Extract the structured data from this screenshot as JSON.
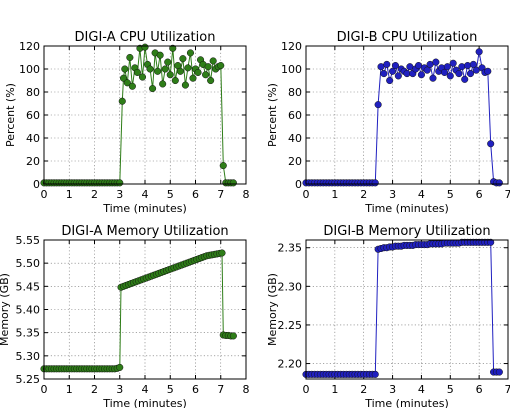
{
  "chart_data": [
    {
      "type": "line",
      "title": "DIGI-A CPU Utilization",
      "xlabel": "Time (minutes)",
      "ylabel": "Percent (%)",
      "xlim": [
        0,
        8
      ],
      "ylim": [
        0,
        120
      ],
      "xticks": [
        "0",
        "1",
        "2",
        "3",
        "4",
        "5",
        "6",
        "7",
        "8"
      ],
      "yticks": [
        "0",
        "20",
        "40",
        "60",
        "80",
        "100",
        "120"
      ],
      "grid": true,
      "series": [
        {
          "color": "#2e7d18",
          "x": [
            0.0,
            0.1,
            0.2,
            0.3,
            0.4,
            0.5,
            0.6,
            0.7,
            0.8,
            0.9,
            1.0,
            1.1,
            1.2,
            1.3,
            1.4,
            1.5,
            1.6,
            1.7,
            1.8,
            1.9,
            2.0,
            2.1,
            2.2,
            2.3,
            2.4,
            2.5,
            2.6,
            2.7,
            2.8,
            2.9,
            3.0,
            3.1,
            3.15,
            3.2,
            3.3,
            3.4,
            3.5,
            3.6,
            3.7,
            3.8,
            3.9,
            4.0,
            4.1,
            4.2,
            4.3,
            4.4,
            4.5,
            4.6,
            4.7,
            4.8,
            4.9,
            5.0,
            5.1,
            5.2,
            5.3,
            5.4,
            5.5,
            5.6,
            5.7,
            5.8,
            5.9,
            6.0,
            6.1,
            6.2,
            6.3,
            6.4,
            6.5,
            6.6,
            6.7,
            6.8,
            6.9,
            7.0,
            7.1,
            7.2,
            7.3,
            7.4,
            7.5
          ],
          "y": [
            1,
            1,
            1,
            1,
            1,
            1,
            1,
            1,
            1,
            1,
            1,
            1,
            1,
            1,
            1,
            1,
            1,
            1,
            1,
            1,
            1,
            1,
            1,
            1,
            1,
            1,
            1,
            1,
            1,
            1,
            1,
            72,
            92,
            100,
            88,
            110,
            85,
            101,
            97,
            118,
            93,
            119,
            104,
            100,
            83,
            114,
            98,
            112,
            87,
            100,
            106,
            95,
            118,
            90,
            103,
            98,
            109,
            86,
            101,
            114,
            92,
            100,
            97,
            108,
            104,
            95,
            102,
            90,
            107,
            100,
            102,
            103,
            16,
            1,
            1,
            1,
            1
          ]
        }
      ]
    },
    {
      "type": "line",
      "title": "DIGI-B CPU Utilization",
      "xlabel": "Time (minutes)",
      "ylabel": "Percent (%)",
      "xlim": [
        0,
        7
      ],
      "ylim": [
        0,
        120
      ],
      "xticks": [
        "0",
        "1",
        "2",
        "3",
        "4",
        "5",
        "6",
        "7"
      ],
      "yticks": [
        "0",
        "20",
        "40",
        "60",
        "80",
        "100",
        "120"
      ],
      "grid": true,
      "series": [
        {
          "color": "#2020c0",
          "x": [
            0.0,
            0.1,
            0.2,
            0.3,
            0.4,
            0.5,
            0.6,
            0.7,
            0.8,
            0.9,
            1.0,
            1.1,
            1.2,
            1.3,
            1.4,
            1.5,
            1.6,
            1.7,
            1.8,
            1.9,
            2.0,
            2.1,
            2.2,
            2.3,
            2.4,
            2.5,
            2.6,
            2.7,
            2.8,
            2.9,
            3.0,
            3.1,
            3.2,
            3.3,
            3.4,
            3.5,
            3.6,
            3.7,
            3.8,
            3.9,
            4.0,
            4.1,
            4.2,
            4.3,
            4.4,
            4.5,
            4.6,
            4.7,
            4.8,
            4.9,
            5.0,
            5.1,
            5.2,
            5.3,
            5.4,
            5.5,
            5.6,
            5.7,
            5.8,
            5.9,
            6.0,
            6.1,
            6.2,
            6.3,
            6.4,
            6.5,
            6.6,
            6.7
          ],
          "y": [
            1,
            1,
            1,
            1,
            1,
            1,
            1,
            1,
            1,
            1,
            1,
            1,
            1,
            1,
            1,
            1,
            1,
            1,
            1,
            1,
            1,
            1,
            1,
            1,
            1,
            69,
            102,
            96,
            104,
            90,
            98,
            103,
            94,
            100,
            98,
            96,
            102,
            96,
            100,
            103,
            95,
            101,
            99,
            104,
            92,
            106,
            98,
            101,
            97,
            102,
            94,
            105,
            99,
            96,
            102,
            91,
            103,
            96,
            104,
            99,
            115,
            101,
            97,
            98,
            35,
            2,
            1,
            1
          ]
        }
      ]
    },
    {
      "type": "line",
      "title": "DIGI-A Memory Utilization",
      "xlabel": "Time (minutes)",
      "ylabel": "Memory (GB)",
      "xlim": [
        0,
        8
      ],
      "ylim": [
        5.25,
        5.55
      ],
      "xticks": [
        "0",
        "1",
        "2",
        "3",
        "4",
        "5",
        "6",
        "7",
        "8"
      ],
      "yticks": [
        "5.25",
        "5.30",
        "5.35",
        "5.40",
        "5.45",
        "5.50",
        "5.55"
      ],
      "grid": true,
      "series": [
        {
          "color": "#2e7d18",
          "x": [
            0.0,
            0.1,
            0.2,
            0.3,
            0.4,
            0.5,
            0.6,
            0.7,
            0.8,
            0.9,
            1.0,
            1.1,
            1.2,
            1.3,
            1.4,
            1.5,
            1.6,
            1.7,
            1.8,
            1.9,
            2.0,
            2.1,
            2.2,
            2.3,
            2.4,
            2.5,
            2.6,
            2.7,
            2.8,
            2.9,
            3.0,
            3.05,
            3.15,
            3.25,
            3.35,
            3.45,
            3.55,
            3.65,
            3.75,
            3.85,
            3.95,
            4.05,
            4.15,
            4.25,
            4.35,
            4.45,
            4.55,
            4.65,
            4.75,
            4.85,
            4.95,
            5.05,
            5.15,
            5.25,
            5.35,
            5.45,
            5.55,
            5.65,
            5.75,
            5.85,
            5.95,
            6.05,
            6.15,
            6.25,
            6.35,
            6.45,
            6.55,
            6.65,
            6.75,
            6.85,
            6.95,
            7.05,
            7.1,
            7.2,
            7.3,
            7.4,
            7.5
          ],
          "y": [
            5.272,
            5.272,
            5.272,
            5.272,
            5.272,
            5.272,
            5.272,
            5.272,
            5.272,
            5.272,
            5.272,
            5.272,
            5.272,
            5.272,
            5.272,
            5.272,
            5.272,
            5.272,
            5.272,
            5.272,
            5.272,
            5.272,
            5.272,
            5.272,
            5.272,
            5.272,
            5.272,
            5.272,
            5.272,
            5.273,
            5.275,
            5.448,
            5.45,
            5.452,
            5.454,
            5.456,
            5.458,
            5.46,
            5.462,
            5.464,
            5.466,
            5.468,
            5.47,
            5.472,
            5.474,
            5.476,
            5.478,
            5.48,
            5.482,
            5.484,
            5.486,
            5.488,
            5.49,
            5.492,
            5.494,
            5.496,
            5.498,
            5.5,
            5.502,
            5.504,
            5.506,
            5.508,
            5.51,
            5.512,
            5.514,
            5.516,
            5.517,
            5.518,
            5.519,
            5.52,
            5.521,
            5.522,
            5.345,
            5.344,
            5.344,
            5.343,
            5.343
          ]
        }
      ]
    },
    {
      "type": "line",
      "title": "DIGI-B Memory Utilization",
      "xlabel": "Time (minutes)",
      "ylabel": "Memory (GB)",
      "xlim": [
        0,
        7
      ],
      "ylim": [
        2.18,
        2.36
      ],
      "xticks": [
        "0",
        "1",
        "2",
        "3",
        "4",
        "5",
        "6",
        "7"
      ],
      "yticks": [
        "2.20",
        "2.25",
        "2.30",
        "2.35"
      ],
      "grid": true,
      "series": [
        {
          "color": "#2020c0",
          "x": [
            0.0,
            0.1,
            0.2,
            0.3,
            0.4,
            0.5,
            0.6,
            0.7,
            0.8,
            0.9,
            1.0,
            1.1,
            1.2,
            1.3,
            1.4,
            1.5,
            1.6,
            1.7,
            1.8,
            1.9,
            2.0,
            2.1,
            2.2,
            2.3,
            2.4,
            2.5,
            2.6,
            2.7,
            2.8,
            2.9,
            3.0,
            3.1,
            3.2,
            3.3,
            3.4,
            3.5,
            3.6,
            3.7,
            3.8,
            3.9,
            4.0,
            4.1,
            4.2,
            4.3,
            4.4,
            4.5,
            4.6,
            4.7,
            4.8,
            4.9,
            5.0,
            5.1,
            5.2,
            5.3,
            5.4,
            5.5,
            5.6,
            5.7,
            5.8,
            5.9,
            6.0,
            6.1,
            6.2,
            6.3,
            6.4,
            6.5,
            6.6,
            6.7
          ],
          "y": [
            2.186,
            2.186,
            2.186,
            2.186,
            2.186,
            2.186,
            2.186,
            2.186,
            2.186,
            2.186,
            2.186,
            2.186,
            2.186,
            2.186,
            2.186,
            2.186,
            2.186,
            2.186,
            2.186,
            2.186,
            2.186,
            2.186,
            2.186,
            2.186,
            2.186,
            2.348,
            2.349,
            2.35,
            2.35,
            2.351,
            2.351,
            2.352,
            2.352,
            2.352,
            2.353,
            2.353,
            2.353,
            2.353,
            2.354,
            2.354,
            2.354,
            2.354,
            2.354,
            2.355,
            2.355,
            2.355,
            2.355,
            2.355,
            2.356,
            2.356,
            2.356,
            2.356,
            2.356,
            2.356,
            2.357,
            2.357,
            2.357,
            2.357,
            2.357,
            2.357,
            2.357,
            2.357,
            2.357,
            2.357,
            2.357,
            2.189,
            2.189,
            2.189
          ]
        }
      ]
    }
  ]
}
